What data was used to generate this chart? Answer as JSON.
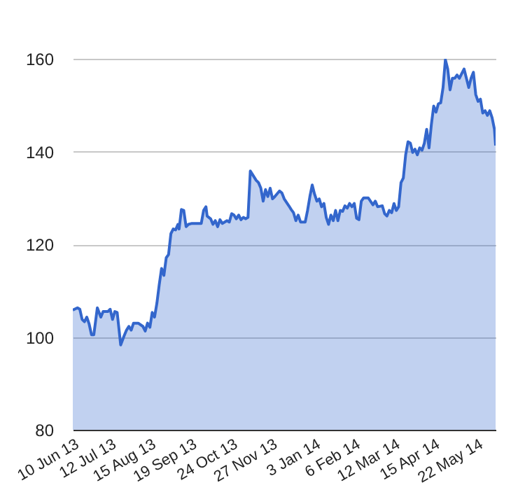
{
  "chart_data": {
    "type": "area",
    "grid": "y",
    "x": [
      "2013-06-10",
      "2013-06-14",
      "2013-06-16",
      "2013-06-18",
      "2013-06-20",
      "2013-06-22",
      "2013-06-24",
      "2013-06-26",
      "2013-06-28",
      "2013-07-01",
      "2013-07-04",
      "2013-07-06",
      "2013-07-10",
      "2013-07-12",
      "2013-07-14",
      "2013-07-16",
      "2013-07-18",
      "2013-07-21",
      "2013-07-24",
      "2013-07-26",
      "2013-07-28",
      "2013-07-30",
      "2013-08-01",
      "2013-08-05",
      "2013-08-09",
      "2013-08-11",
      "2013-08-13",
      "2013-08-15",
      "2013-08-17",
      "2013-08-19",
      "2013-08-21",
      "2013-08-23",
      "2013-08-25",
      "2013-08-27",
      "2013-08-29",
      "2013-08-31",
      "2013-09-02",
      "2013-09-04",
      "2013-09-06",
      "2013-09-08",
      "2013-09-09",
      "2013-09-11",
      "2013-09-13",
      "2013-09-15",
      "2013-09-17",
      "2013-09-20",
      "2013-09-28",
      "2013-09-30",
      "2013-10-02",
      "2013-10-03",
      "2013-10-06",
      "2013-10-08",
      "2013-10-10",
      "2013-10-12",
      "2013-10-14",
      "2013-10-16",
      "2013-10-20",
      "2013-10-22",
      "2013-10-24",
      "2013-10-26",
      "2013-10-28",
      "2013-10-30",
      "2013-11-01",
      "2013-11-03",
      "2013-11-05",
      "2013-11-07",
      "2013-11-09",
      "2013-11-11",
      "2013-11-14",
      "2013-11-16",
      "2013-11-18",
      "2013-11-20",
      "2013-11-22",
      "2013-11-24",
      "2013-11-26",
      "2013-11-28",
      "2013-11-30",
      "2013-12-04",
      "2013-12-06",
      "2013-12-08",
      "2013-12-12",
      "2013-12-14",
      "2013-12-16",
      "2013-12-18",
      "2013-12-20",
      "2013-12-22",
      "2013-12-26",
      "2013-12-28",
      "2013-12-30",
      "2014-01-01",
      "2014-01-03",
      "2014-01-05",
      "2014-01-07",
      "2014-01-09",
      "2014-01-11",
      "2014-01-13",
      "2014-01-15",
      "2014-01-17",
      "2014-01-19",
      "2014-01-21",
      "2014-01-23",
      "2014-01-25",
      "2014-01-27",
      "2014-01-29",
      "2014-01-31",
      "2014-02-02",
      "2014-02-04",
      "2014-02-06",
      "2014-02-08",
      "2014-02-10",
      "2014-02-12",
      "2014-02-14",
      "2014-02-18",
      "2014-02-22",
      "2014-02-24",
      "2014-02-26",
      "2014-03-02",
      "2014-03-04",
      "2014-03-06",
      "2014-03-08",
      "2014-03-10",
      "2014-03-12",
      "2014-03-14",
      "2014-03-16",
      "2014-03-18",
      "2014-03-20",
      "2014-03-22",
      "2014-03-24",
      "2014-03-26",
      "2014-03-28",
      "2014-03-30",
      "2014-04-01",
      "2014-04-03",
      "2014-04-05",
      "2014-04-07",
      "2014-04-09",
      "2014-04-11",
      "2014-04-13",
      "2014-04-15",
      "2014-04-17",
      "2014-04-19",
      "2014-04-21",
      "2014-04-23",
      "2014-04-25",
      "2014-04-27",
      "2014-04-29",
      "2014-05-01",
      "2014-05-03",
      "2014-05-05",
      "2014-05-07",
      "2014-05-09",
      "2014-05-11",
      "2014-05-13",
      "2014-05-15",
      "2014-05-17",
      "2014-05-19",
      "2014-05-21",
      "2014-05-23",
      "2014-05-25",
      "2014-05-27",
      "2014-05-29",
      "2014-05-31",
      "2014-06-02",
      "2014-06-04",
      "2014-06-06",
      "2014-06-07"
    ],
    "series": [
      {
        "color": "#3366cc",
        "values": [
          105.8,
          106.3,
          106,
          103.8,
          103.3,
          104.3,
          102.8,
          100.5,
          100.5,
          106.3,
          104.3,
          105.5,
          105.5,
          106,
          103.8,
          105.5,
          105.3,
          98.3,
          100.3,
          101.5,
          102.3,
          101.5,
          103,
          103,
          102.3,
          101.3,
          103,
          102.1,
          105.3,
          104.3,
          107.3,
          111.3,
          114.8,
          113.3,
          117.1,
          117.8,
          122.3,
          123.3,
          123.1,
          124.3,
          123.3,
          127.5,
          127.3,
          123.8,
          124.3,
          124.5,
          124.5,
          127.3,
          128.1,
          126.1,
          125.5,
          124.3,
          125.1,
          123.8,
          125.3,
          124.5,
          125.1,
          124.8,
          126.6,
          126.3,
          125.5,
          126.3,
          125.3,
          125.8,
          125.5,
          125.8,
          135.8,
          135,
          133.8,
          133.3,
          132.1,
          129.3,
          131.8,
          130.3,
          132.1,
          129.8,
          130.3,
          131.5,
          131.1,
          129.8,
          128.3,
          127.5,
          126.8,
          125.1,
          126.3,
          124.8,
          124.8,
          127.3,
          130.3,
          132.8,
          130.8,
          129.3,
          129.8,
          128.1,
          128.8,
          125.8,
          124.3,
          126.3,
          125.1,
          127.3,
          125.1,
          127.3,
          127.1,
          128.3,
          127.8,
          128.8,
          128.1,
          128.8,
          125.6,
          125.3,
          129.3,
          130,
          130,
          128.5,
          129.3,
          128.1,
          128.3,
          126.6,
          126.1,
          127.3,
          126.8,
          128.8,
          127.3,
          128.1,
          133.3,
          134.3,
          139.3,
          142.1,
          141.8,
          139.8,
          140.5,
          139.3,
          140.8,
          140.3,
          141.8,
          144.8,
          140.8,
          145.8,
          149.8,
          148.5,
          150.3,
          150.5,
          153.8,
          159.8,
          157.8,
          153.3,
          155.8,
          155.8,
          156.5,
          155.8,
          156.8,
          157.8,
          155.8,
          153.8,
          155.8,
          157.1,
          152.3,
          150.8,
          151.3,
          148.3,
          148.8,
          147.8,
          148.8,
          147.3,
          144.8,
          141.3
        ]
      }
    ],
    "xlim": [
      "2013-06-10",
      "2014-06-07"
    ],
    "xticks": [
      {
        "value": "2013-06-10",
        "label": "10 Jun 13"
      },
      {
        "value": "2013-07-12",
        "label": "12 Jul 13"
      },
      {
        "value": "2013-08-15",
        "label": "15 Aug 13"
      },
      {
        "value": "2013-09-19",
        "label": "19 Sep 13"
      },
      {
        "value": "2013-10-24",
        "label": "24 Oct 13"
      },
      {
        "value": "2013-11-27",
        "label": "27 Nov 13"
      },
      {
        "value": "2014-01-03",
        "label": "3 Jan 14"
      },
      {
        "value": "2014-02-06",
        "label": "6 Feb 14"
      },
      {
        "value": "2014-03-12",
        "label": "12 Mar 14"
      },
      {
        "value": "2014-04-15",
        "label": "15 Apr 14"
      },
      {
        "value": "2014-05-22",
        "label": "22 May 14"
      }
    ],
    "ylim": [
      80,
      160
    ],
    "yticks": [
      80,
      100,
      120,
      140,
      160
    ]
  }
}
